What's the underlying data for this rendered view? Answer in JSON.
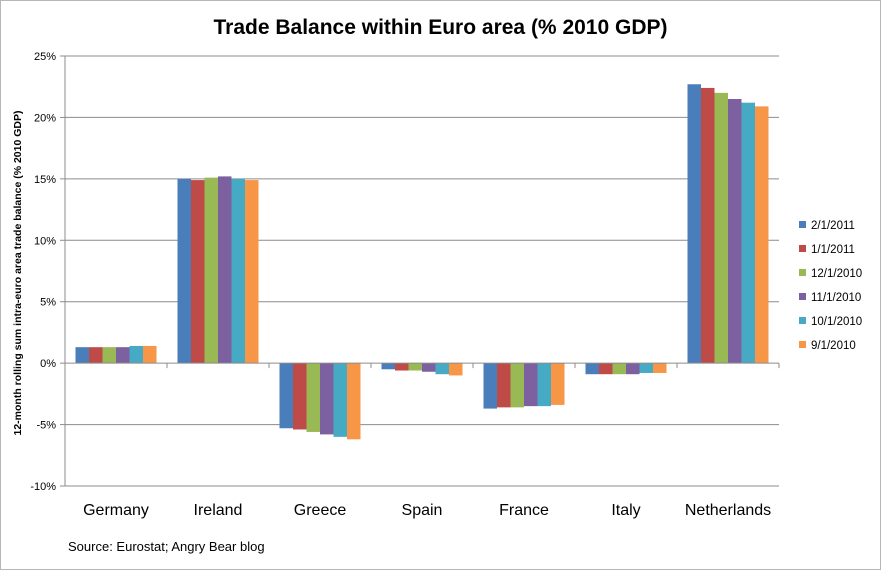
{
  "chart_data": {
    "type": "bar",
    "title": "Trade Balance within Euro area (% 2010 GDP)",
    "xlabel": "",
    "ylabel": "12-month rolling sum intra-euro area trade balance (% 2010 GDP)",
    "ylim": [
      -10,
      25
    ],
    "yticks": [
      "25%",
      "20%",
      "15%",
      "10%",
      "5%",
      "0%",
      "-5%",
      "-10%"
    ],
    "ytick_values": [
      25,
      20,
      15,
      10,
      5,
      0,
      -5,
      -10
    ],
    "grid": true,
    "legend_position": "right",
    "categories": [
      "Germany",
      "Ireland",
      "Greece",
      "Spain",
      "France",
      "Italy",
      "Netherlands"
    ],
    "series": [
      {
        "name": "2/1/2011",
        "color": "#4a7ebb",
        "values": [
          1.3,
          15.0,
          -5.3,
          -0.5,
          -3.7,
          -0.9,
          22.7
        ]
      },
      {
        "name": "1/1/2011",
        "color": "#be4b48",
        "values": [
          1.3,
          14.9,
          -5.4,
          -0.6,
          -3.6,
          -0.9,
          22.4
        ]
      },
      {
        "name": "12/1/2010",
        "color": "#98b954",
        "values": [
          1.3,
          15.1,
          -5.6,
          -0.6,
          -3.6,
          -0.9,
          22.0
        ]
      },
      {
        "name": "11/1/2010",
        "color": "#7d60a0",
        "values": [
          1.3,
          15.2,
          -5.8,
          -0.7,
          -3.5,
          -0.9,
          21.5
        ]
      },
      {
        "name": "10/1/2010",
        "color": "#46aac5",
        "values": [
          1.4,
          15.0,
          -6.0,
          -0.9,
          -3.5,
          -0.8,
          21.2
        ]
      },
      {
        "name": "9/1/2010",
        "color": "#f79646",
        "values": [
          1.4,
          14.9,
          -6.2,
          -1.0,
          -3.4,
          -0.8,
          20.9
        ]
      }
    ]
  },
  "source": "Source: Eurostat; Angry Bear blog"
}
